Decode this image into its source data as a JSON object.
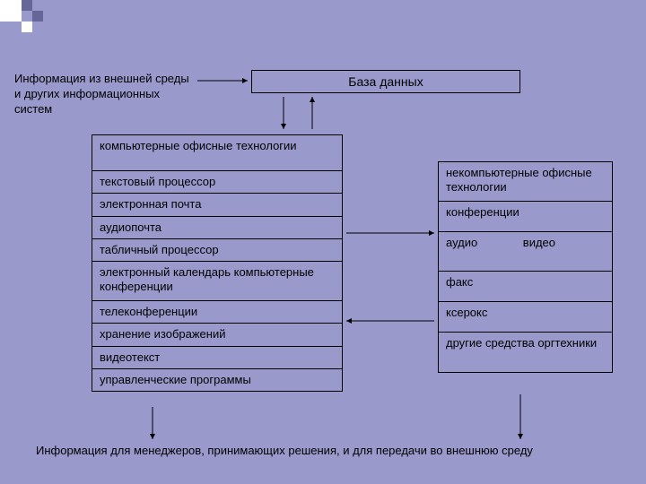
{
  "colors": {
    "background": "#9999cc",
    "border": "#000000",
    "text": "#000000",
    "deco_light": "#ffffff",
    "deco_dark": "#666699"
  },
  "font": {
    "family": "Arial",
    "base_size": 13
  },
  "top_text": "Информация из внешней среды и других информационных систем",
  "db_box": {
    "label": "База данных"
  },
  "left_table": {
    "header": "компьютерные офисные технологии",
    "rows": [
      "текстовый процессор",
      "электронная почта",
      "аудиопочта",
      "табличный процессор",
      "электронный календарь компьютерные конференции",
      "телеконференции",
      "хранение изображений",
      "видеотекст",
      "управленческие программы"
    ]
  },
  "right_table": {
    "header": "некомпьютерные офисные технологии",
    "rows": [
      "конференции",
      "аудио              видео",
      "факс",
      "ксерокс",
      "другие средства оргтехники"
    ]
  },
  "bottom_text": "Информация для менеджеров, принимающих решения, и для передачи во внешнюю среду",
  "arrows": {
    "stroke": "#000000",
    "stroke_width": 1,
    "head_size": 6
  }
}
